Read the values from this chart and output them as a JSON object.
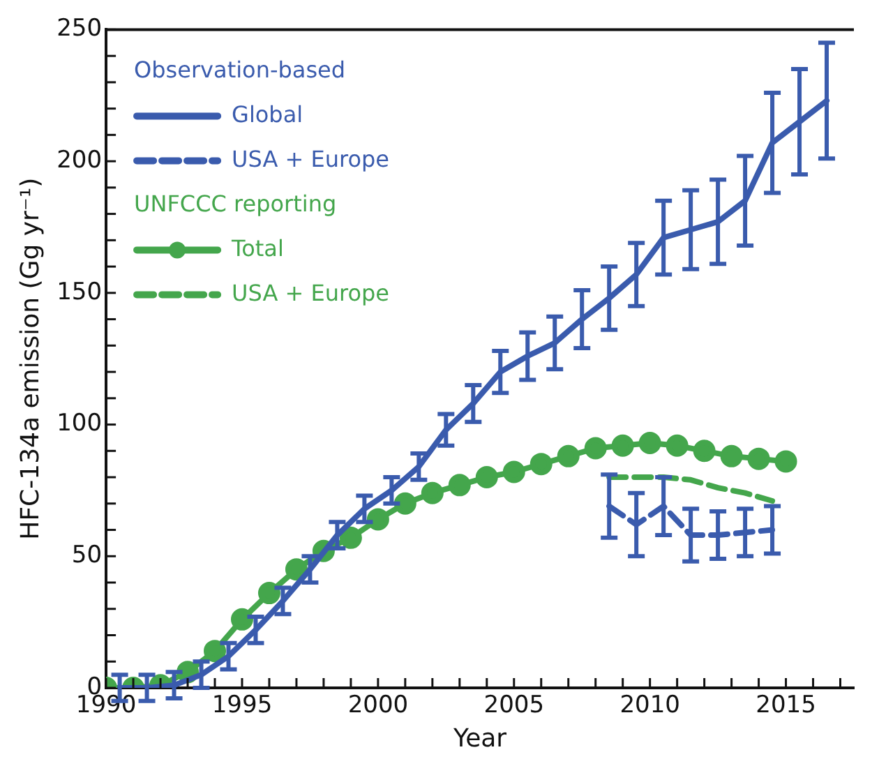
{
  "chart_data": {
    "type": "line",
    "xlabel": "Year",
    "ylabel": "HFC-134a emission (Gg yr⁻¹)",
    "xlim": [
      1990,
      2017.5
    ],
    "xticks": [
      1990,
      1995,
      2000,
      2005,
      2010,
      2015
    ],
    "ylim": [
      0,
      250
    ],
    "yticks": [
      0,
      50,
      100,
      150,
      200,
      250
    ],
    "grid": false,
    "legend": "top left",
    "annotations": [
      "Observation-based",
      "UNFCCC reporting"
    ],
    "series": [
      {
        "name": "Global",
        "color": "#3a5bad",
        "line_style": "solid",
        "marker": "none",
        "x": [
          1990.5,
          1991.5,
          1992.5,
          1993.5,
          1994.5,
          1995.5,
          1996.5,
          1997.5,
          1998.5,
          1999.5,
          2000.5,
          2001.5,
          2002.5,
          2003.5,
          2004.5,
          2005.5,
          2006.5,
          2007.5,
          2008.5,
          2009.5,
          2010.5,
          2011.5,
          2012.5,
          2013.5,
          2014.5,
          2015.5,
          2016.5
        ],
        "values": [
          0,
          0,
          1,
          5,
          12,
          22,
          33,
          45,
          58,
          68,
          75,
          84,
          98,
          108,
          120,
          126,
          131,
          140,
          148,
          157,
          171,
          174,
          177,
          185,
          207,
          215,
          223
        ],
        "errors": [
          5,
          5,
          5,
          5,
          5,
          5,
          5,
          5,
          5,
          5,
          5,
          5,
          6,
          7,
          8,
          9,
          10,
          11,
          12,
          12,
          14,
          15,
          16,
          17,
          19,
          20,
          22
        ]
      },
      {
        "name": "USA + Europe",
        "color": "#3a5bad",
        "line_style": "dashed",
        "marker": "none",
        "x": [
          2008.5,
          2009.5,
          2010.5,
          2011.5,
          2012.5,
          2013.5,
          2014.5
        ],
        "values": [
          69,
          62,
          69,
          58,
          58,
          59,
          60
        ],
        "errors": [
          12,
          12,
          11,
          10,
          9,
          9,
          9
        ]
      },
      {
        "name": "Total",
        "color": "#44a64c",
        "line_style": "solid",
        "marker": "circle",
        "x": [
          1990,
          1991,
          1992,
          1993,
          1994,
          1995,
          1996,
          1997,
          1998,
          1999,
          2000,
          2001,
          2002,
          2003,
          2004,
          2005,
          2006,
          2007,
          2008,
          2009,
          2010,
          2011,
          2012,
          2013,
          2014,
          2015
        ],
        "values": [
          0,
          0,
          1,
          6,
          14,
          26,
          36,
          45,
          52,
          57,
          64,
          70,
          74,
          77,
          80,
          82,
          85,
          88,
          91,
          92,
          93,
          92,
          90,
          88,
          87,
          86
        ]
      },
      {
        "name": "USA + Europe",
        "color": "#44a64c",
        "line_style": "dashed",
        "marker": "none",
        "x": [
          2008.5,
          2009.5,
          2010.5,
          2011.5,
          2012.5,
          2013.5,
          2014.5
        ],
        "values": [
          80,
          80,
          80,
          79,
          76,
          74,
          71
        ]
      }
    ]
  }
}
